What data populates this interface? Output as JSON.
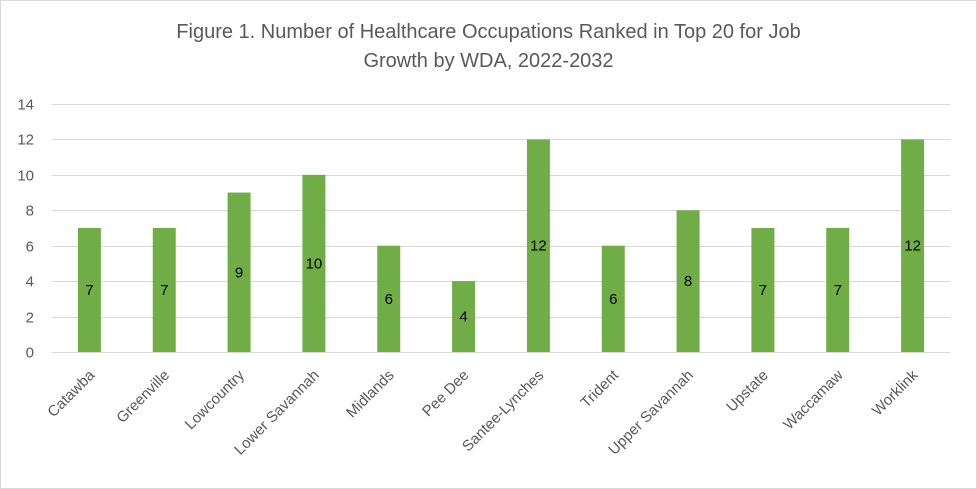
{
  "chart_data": {
    "type": "bar",
    "title_line1": "Figure 1. Number of Healthcare Occupations Ranked in Top 20 for Job",
    "title_line2": "Growth by WDA, 2022-2032",
    "categories": [
      "Catawba",
      "Greenville",
      "Lowcountry",
      "Lower Savannah",
      "Midlands",
      "Pee Dee",
      "Santee-Lynches",
      "Trident",
      "Upper Savannah",
      "Upstate",
      "Waccamaw",
      "Worklink"
    ],
    "values": [
      7,
      7,
      9,
      10,
      6,
      4,
      12,
      6,
      8,
      7,
      7,
      12
    ],
    "data_labels": [
      "7",
      "7",
      "9",
      "10",
      "6",
      "4",
      "12",
      "6",
      "8",
      "7",
      "7",
      "12"
    ],
    "ylim": [
      0,
      14
    ],
    "yticks": [
      0,
      2,
      4,
      6,
      8,
      10,
      12,
      14
    ],
    "xlabel": "",
    "ylabel": "",
    "grid": true,
    "legend": "none",
    "bar_color": "#70ad47",
    "grid_color": "#d9d9d9",
    "text_color": "#595959"
  }
}
